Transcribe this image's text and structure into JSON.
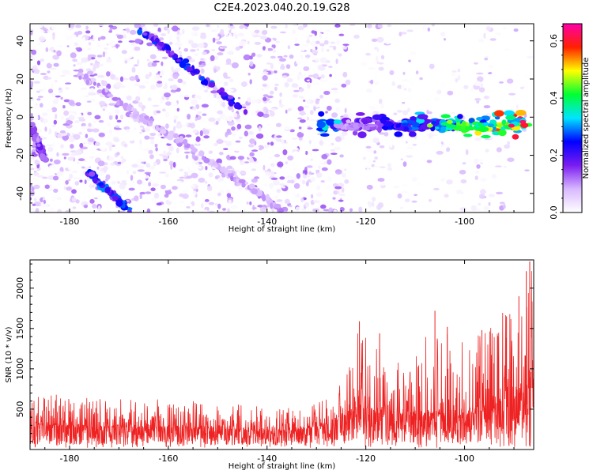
{
  "title": "C2E4.2023.040.20.19.G28",
  "colors": {
    "snr_line": "#ee2222",
    "colormap": [
      "#ffffff",
      "#d8b8ff",
      "#7a1cf0",
      "#0000ff",
      "#00e5ff",
      "#00ff33",
      "#ffff00",
      "#ff2000",
      "#ff00aa"
    ]
  },
  "chart_data": [
    {
      "type": "heatmap",
      "xlabel": "Height of straight line (km)",
      "ylabel": "Frequency (Hz)",
      "xlim": [
        -188,
        -86
      ],
      "ylim": [
        -50,
        49
      ],
      "xticks": [
        -180,
        -160,
        -140,
        -120,
        -100
      ],
      "yticks": [
        -40,
        -20,
        0,
        20,
        40
      ],
      "colorbar": {
        "label": "Normalized spectral amplitude",
        "range": [
          0,
          0.66
        ],
        "ticks": [
          0.0,
          0.2,
          0.4,
          0.6
        ]
      },
      "features": [
        {
          "name": "left diagonal ridge",
          "x": [
            -176,
            -168
          ],
          "y": [
            -29,
            -49
          ],
          "peak": 0.3
        },
        {
          "name": "upper diagonal ridge",
          "x": [
            -166,
            -144
          ],
          "y": [
            47,
            2
          ],
          "peak": 0.3
        },
        {
          "name": "faint diagonal streak",
          "x": [
            -178,
            -136
          ],
          "y": [
            22,
            -50
          ],
          "peak": 0.12
        },
        {
          "name": "horizontal ridge",
          "x": [
            -129,
            -87
          ],
          "y": [
            -4,
            -4
          ],
          "peak": 0.62
        },
        {
          "name": "left edge cluster",
          "x": [
            -188,
            -185
          ],
          "y": [
            -4,
            -22
          ],
          "peak": 0.2
        }
      ]
    },
    {
      "type": "line",
      "xlabel": "Height of straight line (km)",
      "ylabel": "SNR (10 * v/v)",
      "xlim": [
        -188,
        -86
      ],
      "ylim": [
        0,
        2350
      ],
      "xticks": [
        -180,
        -160,
        -140,
        -120,
        -100
      ],
      "yticks": [
        500,
        1000,
        1500,
        2000
      ],
      "series": [
        {
          "envelope": {
            "x": [
              -188,
              -180,
              -170,
              -160,
              -150,
              -140,
              -134,
              -128,
              -124,
              -121,
              -118,
              -115,
              -112,
              -108,
              -105,
              -102,
              -100,
              -98,
              -95,
              -92,
              -89,
              -87
            ],
            "base": [
              300,
              300,
              280,
              270,
              260,
              230,
              240,
              300,
              420,
              520,
              480,
              450,
              420,
              450,
              440,
              380,
              430,
              450,
              520,
              620,
              700,
              760
            ],
            "max": [
              780,
              640,
              660,
              620,
              600,
              520,
              540,
              620,
              920,
              1590,
              1440,
              1270,
              920,
              1470,
              1720,
              1150,
              1480,
              1400,
              1620,
              1900,
              2210,
              2330
            ]
          },
          "peaks": [
            {
              "x": -121.3,
              "y": 1590
            },
            {
              "x": -117.2,
              "y": 1440
            },
            {
              "x": -106.0,
              "y": 1720
            },
            {
              "x": -103.5,
              "y": 1520
            },
            {
              "x": -96.5,
              "y": 1480
            },
            {
              "x": -91.5,
              "y": 1650
            },
            {
              "x": -89.0,
              "y": 1900
            },
            {
              "x": -87.5,
              "y": 2210
            },
            {
              "x": -86.8,
              "y": 2330
            }
          ]
        }
      ]
    }
  ]
}
